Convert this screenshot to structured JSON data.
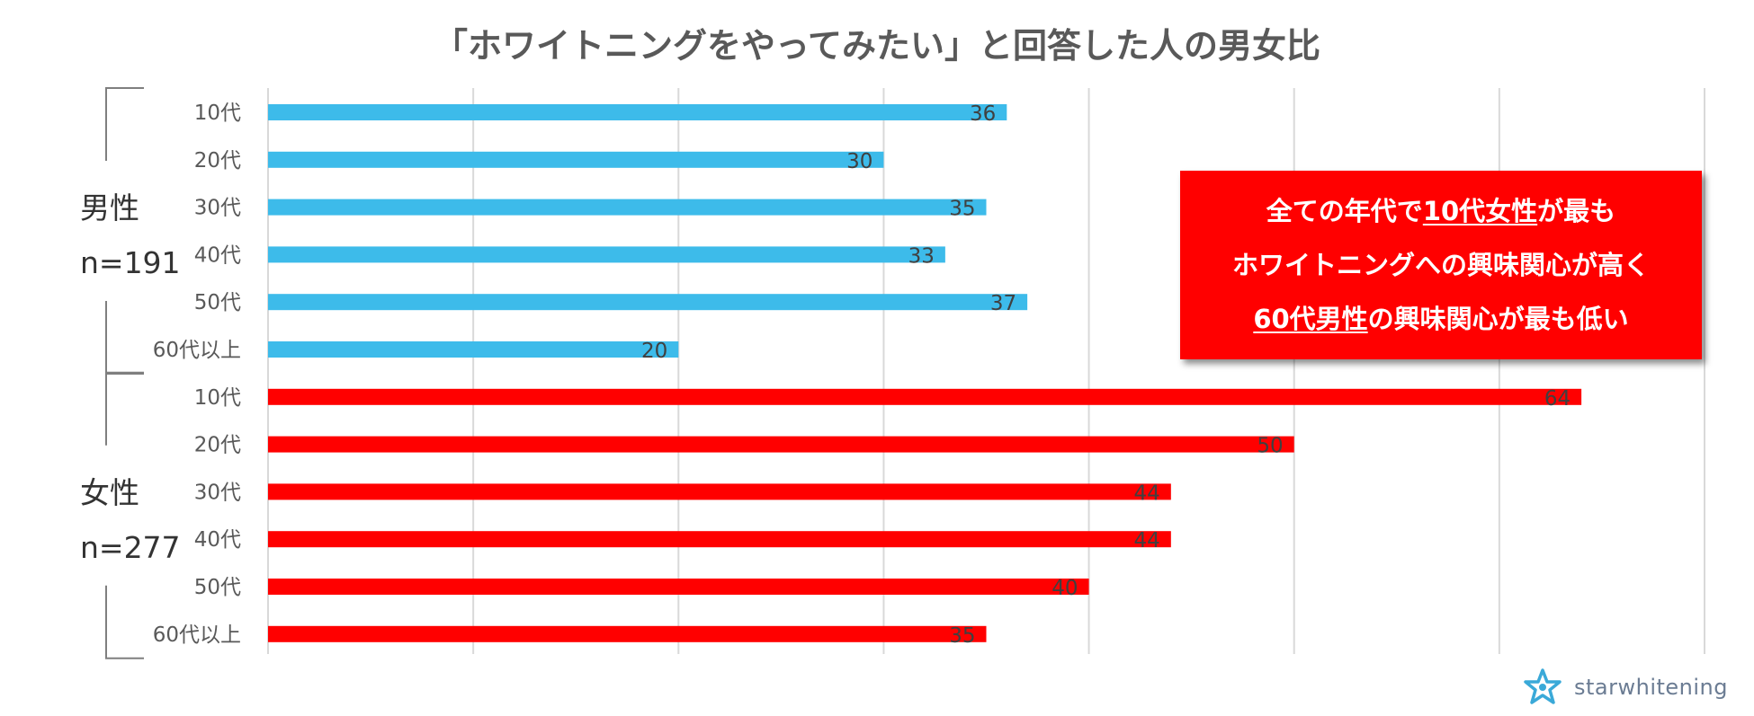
{
  "chart_data": {
    "type": "bar",
    "orientation": "horizontal",
    "title": "「ホワイトニングをやってみたい」と回答した人の男女比",
    "xlim": [
      0,
      70
    ],
    "grid": true,
    "groups": [
      {
        "name": "男性",
        "n_label": "n=191",
        "color": "#3dbbea",
        "categories": [
          "10代",
          "20代",
          "30代",
          "40代",
          "50代",
          "60代以上"
        ],
        "values": [
          36,
          30,
          35,
          33,
          37,
          20
        ]
      },
      {
        "name": "女性",
        "n_label": "n=277",
        "color": "#ff0000",
        "categories": [
          "10代",
          "20代",
          "30代",
          "40代",
          "50代",
          "60代以上"
        ],
        "values": [
          64,
          50,
          44,
          44,
          40,
          35
        ]
      }
    ]
  },
  "callout": {
    "line1_prefix": "全ての年代で",
    "line1_highlight": "10代女性",
    "line1_suffix": "が最も",
    "line2": "ホワイトニングへの興味関心が高く",
    "line3_highlight": "60代男性",
    "line3_suffix": "の興味関心が最も低い",
    "background_color": "#ff0000"
  },
  "logo": {
    "text": "starwhitening",
    "icon": "star-logo-icon"
  }
}
